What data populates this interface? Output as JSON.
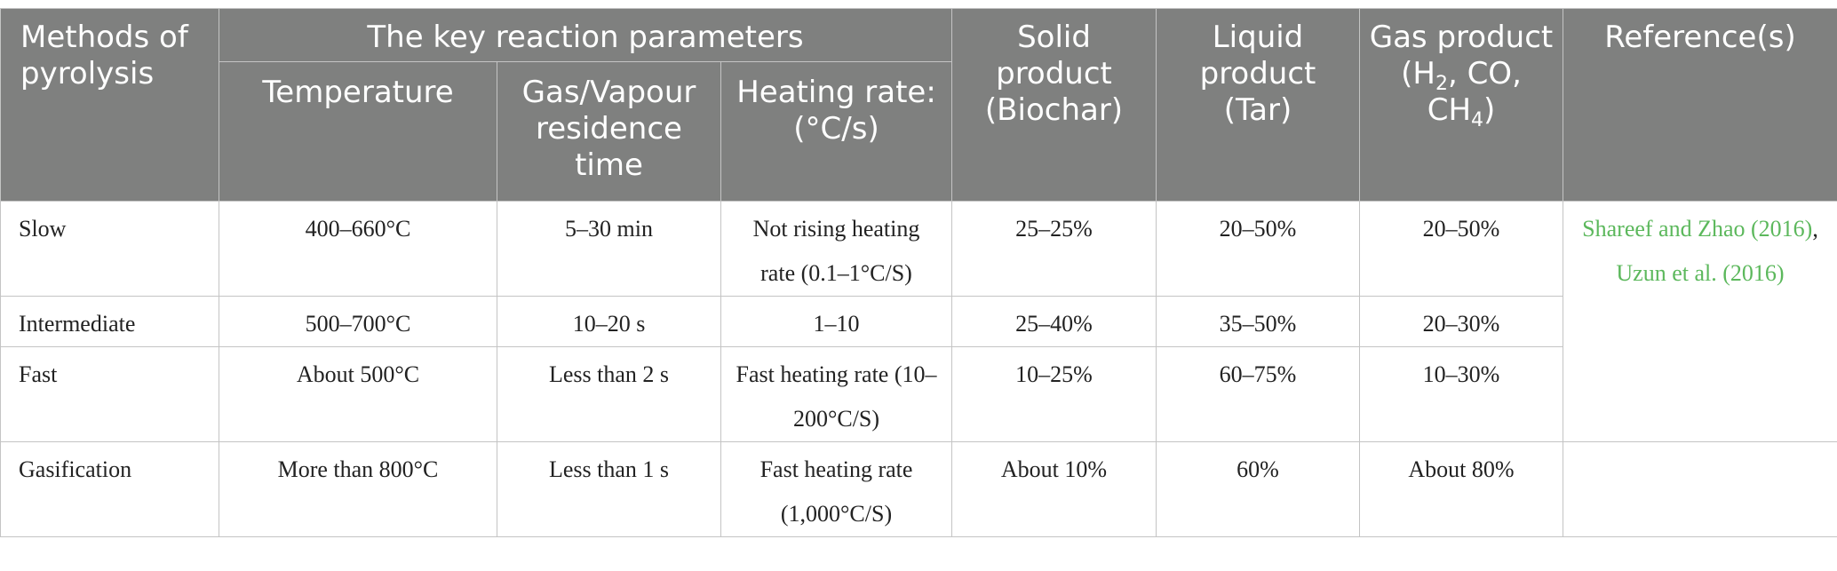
{
  "header": {
    "methods": "Methods of pyrolysis",
    "key_params": "The key reaction parameters",
    "temperature": "Temperature",
    "residence": "Gas/Vapour residence time",
    "heating": "Heating rate: (°C/s)",
    "solid": "Solid product (Biochar)",
    "liquid": "Liquid product (Tar)",
    "gas_prefix": "Gas product (H",
    "gas_sub1": "2",
    "gas_mid": ", CO, CH",
    "gas_sub2": "4",
    "gas_suffix": ")",
    "reference": "Reference(s)"
  },
  "rows": [
    {
      "method": "Slow",
      "temperature": "400–660°C",
      "residence": "5–30 min",
      "heating": "Not rising heating rate (0.1–1°C/S)",
      "solid": "25–25%",
      "liquid": "20–50%",
      "gas": "20–50%"
    },
    {
      "method": "Intermediate",
      "temperature": "500–700°C",
      "residence": "10–20 s",
      "heating": "1–10",
      "solid": "25–40%",
      "liquid": "35–50%",
      "gas": "20–30%"
    },
    {
      "method": "Fast",
      "temperature": "About 500°C",
      "residence": "Less than 2 s",
      "heating": "Fast heating rate (10–200°C/S)",
      "solid": "10–25%",
      "liquid": "60–75%",
      "gas": "10–30%"
    },
    {
      "method": "Gasification",
      "temperature": "More than 800°C",
      "residence": "Less than 1 s",
      "heating": "Fast heating rate (1,000°C/S)",
      "solid": "About 10%",
      "liquid": "60%",
      "gas": "About 80%"
    }
  ],
  "references": {
    "ref1": "Shareef and Zhao (2016)",
    "separator": ",",
    "ref2": "Uzun et al. (2016)"
  },
  "colors": {
    "header_bg": "#7f807f",
    "header_text": "#ffffff",
    "link": "#5cb85c",
    "border": "#c4c4c4"
  }
}
